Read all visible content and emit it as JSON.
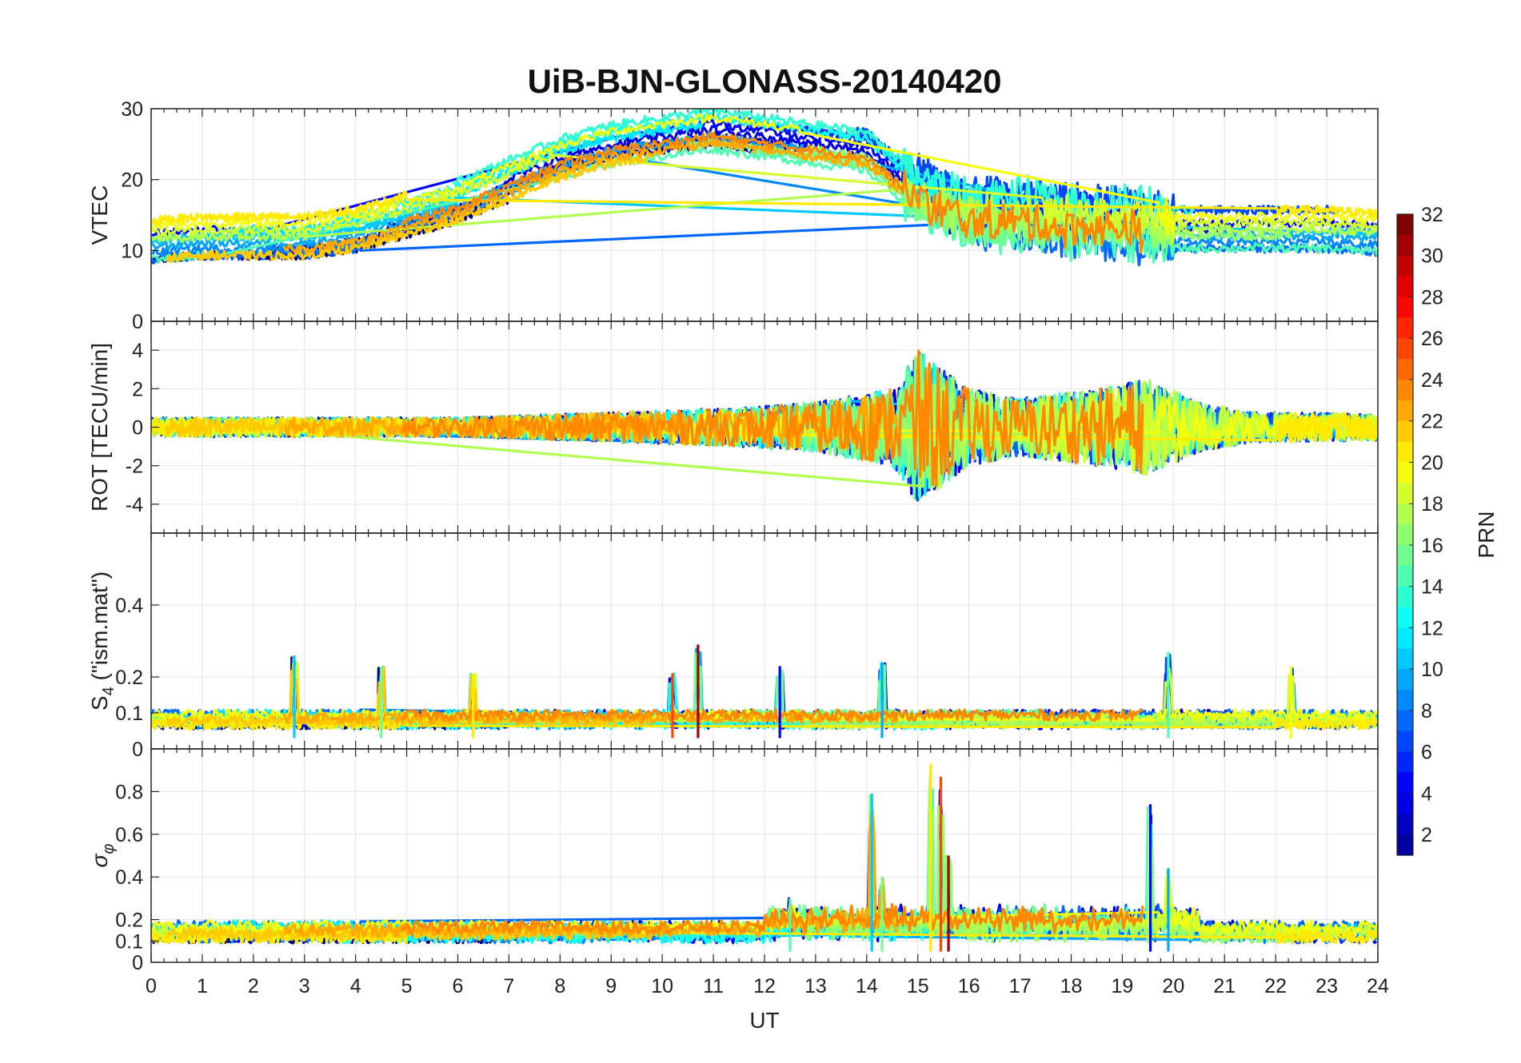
{
  "chart_data": {
    "type": "line",
    "title": "UiB-BJN-GLONASS-20140420",
    "xlabel": "UT",
    "xlim": [
      0,
      24
    ],
    "x_ticks": [
      0,
      1,
      2,
      3,
      4,
      5,
      6,
      7,
      8,
      9,
      10,
      11,
      12,
      13,
      14,
      15,
      16,
      17,
      18,
      19,
      20,
      21,
      22,
      23,
      24
    ],
    "panels": [
      {
        "id": "vtec",
        "ylabel": "VTEC",
        "ylim": [
          0,
          30
        ],
        "y_ticks": [
          0,
          10,
          20,
          30
        ],
        "trend": [
          [
            0,
            11.5
          ],
          [
            1,
            12
          ],
          [
            2,
            12
          ],
          [
            3,
            12
          ],
          [
            4,
            13
          ],
          [
            5,
            15
          ],
          [
            6,
            17
          ],
          [
            7,
            20
          ],
          [
            8,
            23
          ],
          [
            9,
            25
          ],
          [
            10,
            26
          ],
          [
            11,
            27
          ],
          [
            12,
            26
          ],
          [
            13,
            25
          ],
          [
            14,
            24
          ],
          [
            15,
            18
          ],
          [
            16,
            15
          ],
          [
            17,
            15
          ],
          [
            18,
            14
          ],
          [
            19,
            14
          ],
          [
            20,
            13
          ],
          [
            21,
            13
          ],
          [
            22,
            13
          ],
          [
            23,
            13
          ],
          [
            24,
            12.5
          ]
        ]
      },
      {
        "id": "rot",
        "ylabel": "ROT [TECU/min]",
        "ylim": [
          -5.5,
          5.5
        ],
        "y_ticks": [
          -4,
          -2,
          0,
          2,
          4
        ],
        "activity": [
          [
            0,
            0.5
          ],
          [
            6,
            0.5
          ],
          [
            11.5,
            1.0
          ],
          [
            13,
            1.3
          ],
          [
            14.5,
            2.0
          ],
          [
            15,
            4.0
          ],
          [
            16,
            2.0
          ],
          [
            17,
            1.5
          ],
          [
            18.5,
            2.0
          ],
          [
            19.5,
            2.5
          ],
          [
            20.5,
            1.3
          ],
          [
            21.5,
            0.8
          ],
          [
            24,
            0.7
          ]
        ]
      },
      {
        "id": "s4",
        "ylabel": "S_4 (\"ism.mat\")",
        "ylim": [
          0,
          0.6
        ],
        "y_ticks": [
          0,
          0.1,
          0.2,
          0.4
        ],
        "base": [
          [
            0,
            0.06
          ],
          [
            24,
            0.06
          ]
        ],
        "spikes": [
          [
            2.8,
            0.26
          ],
          [
            4.5,
            0.23
          ],
          [
            6.3,
            0.21
          ],
          [
            10.2,
            0.21
          ],
          [
            10.7,
            0.29
          ],
          [
            12.3,
            0.23
          ],
          [
            14.3,
            0.24
          ],
          [
            19.9,
            0.27
          ],
          [
            22.3,
            0.23
          ]
        ]
      },
      {
        "id": "sigma_phi",
        "ylabel": "σ_φ",
        "ylim": [
          0,
          1
        ],
        "y_ticks": [
          0,
          0.1,
          0.2,
          0.4,
          0.6,
          0.8
        ],
        "base": [
          [
            0,
            0.12
          ],
          [
            24,
            0.12
          ]
        ],
        "spikes": [
          [
            14.1,
            0.79
          ],
          [
            14.3,
            0.4
          ],
          [
            15.25,
            0.93
          ],
          [
            15.45,
            0.87
          ],
          [
            15.6,
            0.5
          ],
          [
            19.55,
            0.74
          ],
          [
            19.9,
            0.44
          ],
          [
            12.5,
            0.3
          ]
        ]
      }
    ],
    "colorbar": {
      "label": "PRN",
      "range": [
        1,
        32
      ],
      "ticks": [
        2,
        4,
        6,
        8,
        10,
        12,
        14,
        16,
        18,
        20,
        22,
        24,
        26,
        28,
        30,
        32
      ],
      "colormap": "jet"
    },
    "series_count": 24
  }
}
